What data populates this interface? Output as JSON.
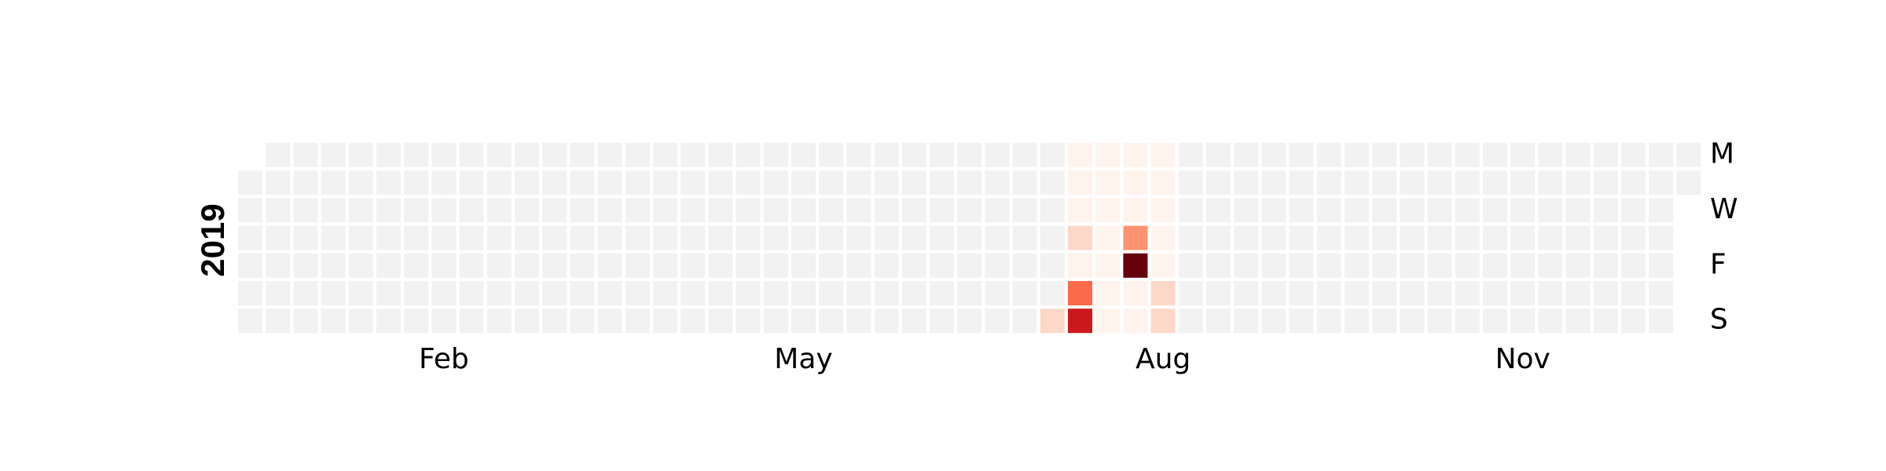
{
  "chart_data": {
    "type": "heatmap",
    "title": "",
    "year": "2019",
    "first_day_offset": 1,
    "month_labels": [
      {
        "label": "Feb",
        "week": 7
      },
      {
        "label": "May",
        "week": 20
      },
      {
        "label": "Aug",
        "week": 33
      },
      {
        "label": "Nov",
        "week": 46
      }
    ],
    "day_labels": [
      {
        "label": "M",
        "weekday": 0
      },
      {
        "label": "W",
        "weekday": 2
      },
      {
        "label": "F",
        "weekday": 4
      },
      {
        "label": "S",
        "weekday": 6
      }
    ],
    "color_scale": {
      "empty": "#f2f2f2",
      "levels": [
        "#fff3ee",
        "#fdd8c9",
        "#fc9272",
        "#fb6a4a",
        "#cb181d",
        "#67000d"
      ]
    },
    "active_days": [
      {
        "date": "2019-07-28",
        "level": 2
      },
      {
        "date": "2019-07-29",
        "level": 1
      },
      {
        "date": "2019-07-30",
        "level": 1
      },
      {
        "date": "2019-07-31",
        "level": 1
      },
      {
        "date": "2019-08-01",
        "level": 2
      },
      {
        "date": "2019-08-02",
        "level": 1
      },
      {
        "date": "2019-08-03",
        "level": 4
      },
      {
        "date": "2019-08-04",
        "level": 5
      },
      {
        "date": "2019-08-05",
        "level": 1
      },
      {
        "date": "2019-08-06",
        "level": 1
      },
      {
        "date": "2019-08-07",
        "level": 1
      },
      {
        "date": "2019-08-08",
        "level": 1
      },
      {
        "date": "2019-08-09",
        "level": 1
      },
      {
        "date": "2019-08-10",
        "level": 1
      },
      {
        "date": "2019-08-11",
        "level": 1
      },
      {
        "date": "2019-08-12",
        "level": 1
      },
      {
        "date": "2019-08-13",
        "level": 1
      },
      {
        "date": "2019-08-14",
        "level": 1
      },
      {
        "date": "2019-08-15",
        "level": 3
      },
      {
        "date": "2019-08-16",
        "level": 6
      },
      {
        "date": "2019-08-17",
        "level": 1
      },
      {
        "date": "2019-08-18",
        "level": 1
      },
      {
        "date": "2019-08-19",
        "level": 1
      },
      {
        "date": "2019-08-20",
        "level": 1
      },
      {
        "date": "2019-08-21",
        "level": 1
      },
      {
        "date": "2019-08-22",
        "level": 1
      },
      {
        "date": "2019-08-23",
        "level": 1
      },
      {
        "date": "2019-08-24",
        "level": 2
      },
      {
        "date": "2019-08-25",
        "level": 2
      }
    ]
  }
}
